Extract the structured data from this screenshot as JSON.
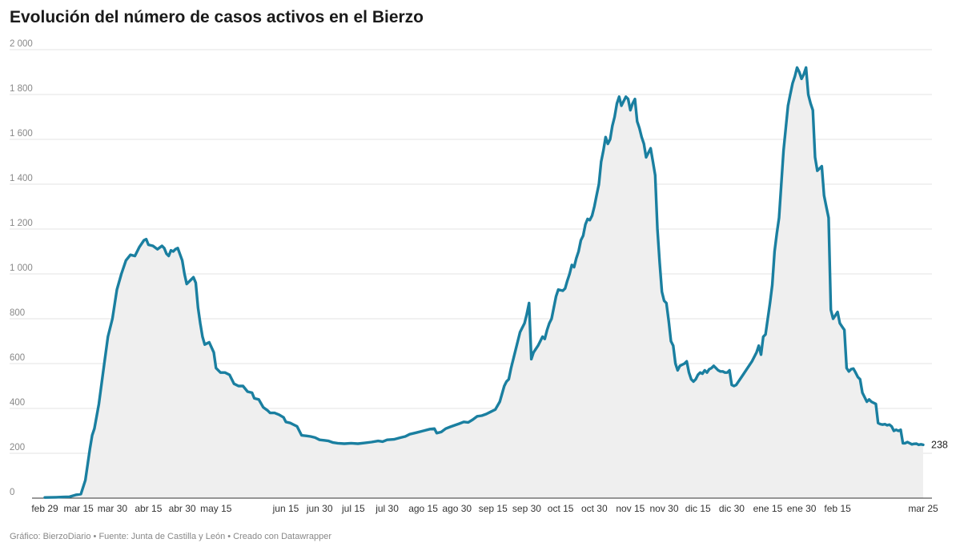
{
  "title": "Evolución del número de casos activos en el Bierzo",
  "footer": "Gráfico: BierzoDiario • Fuente: Junta de Castilla y León • Creado con Datawrapper",
  "colors": {
    "line": "#1a7fa0",
    "area": "#efefef",
    "grid": "#e3e3e3"
  },
  "chart_data": {
    "type": "area",
    "title": "Evolución del número de casos activos en el Bierzo",
    "xlabel": "",
    "ylabel": "",
    "ylim": [
      0,
      2000
    ],
    "y_ticks": [
      0,
      200,
      400,
      600,
      800,
      1000,
      1200,
      1400,
      1600,
      1800,
      2000
    ],
    "y_tick_labels": [
      "0",
      "200",
      "400",
      "600",
      "800",
      "1 000",
      "1 200",
      "1 400",
      "1 600",
      "1 800",
      "2 000"
    ],
    "x_range_days": [
      0,
      390
    ],
    "x_ticks": [
      {
        "day": 0,
        "label": "feb 29"
      },
      {
        "day": 15,
        "label": "mar 15"
      },
      {
        "day": 30,
        "label": "mar 30"
      },
      {
        "day": 46,
        "label": "abr 15"
      },
      {
        "day": 61,
        "label": "abr 30"
      },
      {
        "day": 76,
        "label": "may 15"
      },
      {
        "day": 107,
        "label": "jun 15"
      },
      {
        "day": 122,
        "label": "jun 30"
      },
      {
        "day": 137,
        "label": "jul 15"
      },
      {
        "day": 152,
        "label": "jul 30"
      },
      {
        "day": 168,
        "label": "ago 15"
      },
      {
        "day": 183,
        "label": "ago 30"
      },
      {
        "day": 199,
        "label": "sep 15"
      },
      {
        "day": 214,
        "label": "sep 30"
      },
      {
        "day": 229,
        "label": "oct 15"
      },
      {
        "day": 244,
        "label": "oct 30"
      },
      {
        "day": 260,
        "label": "nov 15"
      },
      {
        "day": 275,
        "label": "nov 30"
      },
      {
        "day": 290,
        "label": "dic 15"
      },
      {
        "day": 305,
        "label": "dic 30"
      },
      {
        "day": 321,
        "label": "ene 15"
      },
      {
        "day": 336,
        "label": "ene 30"
      },
      {
        "day": 352,
        "label": "feb 15"
      },
      {
        "day": 390,
        "label": "mar 25"
      }
    ],
    "end_label": "238",
    "series": [
      {
        "values": [
          [
            0,
            3
          ],
          [
            5,
            4
          ],
          [
            8,
            5
          ],
          [
            11,
            6
          ],
          [
            14,
            15
          ],
          [
            16,
            18
          ],
          [
            18,
            80
          ],
          [
            20,
            220
          ],
          [
            21,
            280
          ],
          [
            22,
            310
          ],
          [
            24,
            420
          ],
          [
            26,
            570
          ],
          [
            28,
            720
          ],
          [
            30,
            800
          ],
          [
            32,
            930
          ],
          [
            34,
            1000
          ],
          [
            36,
            1060
          ],
          [
            38,
            1085
          ],
          [
            40,
            1080
          ],
          [
            42,
            1120
          ],
          [
            44,
            1150
          ],
          [
            45,
            1155
          ],
          [
            46,
            1130
          ],
          [
            48,
            1125
          ],
          [
            50,
            1110
          ],
          [
            52,
            1125
          ],
          [
            53,
            1115
          ],
          [
            54,
            1090
          ],
          [
            55,
            1080
          ],
          [
            56,
            1105
          ],
          [
            57,
            1100
          ],
          [
            58,
            1110
          ],
          [
            59,
            1115
          ],
          [
            61,
            1060
          ],
          [
            62,
            1000
          ],
          [
            63,
            955
          ],
          [
            65,
            975
          ],
          [
            66,
            985
          ],
          [
            67,
            960
          ],
          [
            68,
            850
          ],
          [
            69,
            780
          ],
          [
            70,
            720
          ],
          [
            71,
            685
          ],
          [
            72,
            690
          ],
          [
            73,
            695
          ],
          [
            75,
            650
          ],
          [
            76,
            580
          ],
          [
            78,
            560
          ],
          [
            80,
            560
          ],
          [
            82,
            550
          ],
          [
            84,
            510
          ],
          [
            86,
            500
          ],
          [
            88,
            500
          ],
          [
            90,
            475
          ],
          [
            92,
            470
          ],
          [
            93,
            445
          ],
          [
            95,
            440
          ],
          [
            97,
            405
          ],
          [
            99,
            390
          ],
          [
            100,
            380
          ],
          [
            102,
            380
          ],
          [
            104,
            372
          ],
          [
            106,
            360
          ],
          [
            107,
            340
          ],
          [
            109,
            335
          ],
          [
            110,
            330
          ],
          [
            111,
            325
          ],
          [
            112,
            320
          ],
          [
            114,
            280
          ],
          [
            116,
            278
          ],
          [
            118,
            275
          ],
          [
            120,
            270
          ],
          [
            122,
            260
          ],
          [
            124,
            258
          ],
          [
            126,
            255
          ],
          [
            128,
            248
          ],
          [
            130,
            245
          ],
          [
            133,
            243
          ],
          [
            136,
            245
          ],
          [
            139,
            243
          ],
          [
            142,
            246
          ],
          [
            145,
            250
          ],
          [
            148,
            255
          ],
          [
            150,
            252
          ],
          [
            152,
            260
          ],
          [
            155,
            262
          ],
          [
            158,
            270
          ],
          [
            160,
            275
          ],
          [
            162,
            285
          ],
          [
            165,
            292
          ],
          [
            168,
            300
          ],
          [
            171,
            308
          ],
          [
            173,
            310
          ],
          [
            174,
            290
          ],
          [
            176,
            295
          ],
          [
            178,
            310
          ],
          [
            180,
            318
          ],
          [
            182,
            325
          ],
          [
            184,
            332
          ],
          [
            186,
            340
          ],
          [
            188,
            338
          ],
          [
            190,
            350
          ],
          [
            192,
            365
          ],
          [
            194,
            368
          ],
          [
            196,
            375
          ],
          [
            198,
            385
          ],
          [
            200,
            395
          ],
          [
            202,
            430
          ],
          [
            204,
            500
          ],
          [
            205,
            520
          ],
          [
            206,
            530
          ],
          [
            207,
            580
          ],
          [
            209,
            660
          ],
          [
            210,
            700
          ],
          [
            211,
            740
          ],
          [
            213,
            780
          ],
          [
            214,
            820
          ],
          [
            215,
            870
          ],
          [
            216,
            620
          ],
          [
            217,
            650
          ],
          [
            219,
            680
          ],
          [
            220,
            700
          ],
          [
            221,
            720
          ],
          [
            222,
            710
          ],
          [
            223,
            750
          ],
          [
            224,
            780
          ],
          [
            225,
            800
          ],
          [
            226,
            850
          ],
          [
            227,
            900
          ],
          [
            228,
            930
          ],
          [
            230,
            925
          ],
          [
            231,
            935
          ],
          [
            232,
            970
          ],
          [
            233,
            1000
          ],
          [
            234,
            1040
          ],
          [
            235,
            1030
          ],
          [
            236,
            1070
          ],
          [
            237,
            1100
          ],
          [
            238,
            1150
          ],
          [
            239,
            1170
          ],
          [
            240,
            1220
          ],
          [
            241,
            1245
          ],
          [
            242,
            1240
          ],
          [
            243,
            1260
          ],
          [
            244,
            1300
          ],
          [
            245,
            1350
          ],
          [
            246,
            1400
          ],
          [
            247,
            1500
          ],
          [
            248,
            1550
          ],
          [
            249,
            1610
          ],
          [
            250,
            1580
          ],
          [
            251,
            1600
          ],
          [
            252,
            1660
          ],
          [
            253,
            1700
          ],
          [
            254,
            1760
          ],
          [
            255,
            1790
          ],
          [
            256,
            1750
          ],
          [
            257,
            1770
          ],
          [
            258,
            1790
          ],
          [
            259,
            1780
          ],
          [
            260,
            1730
          ],
          [
            261,
            1760
          ],
          [
            262,
            1780
          ],
          [
            263,
            1680
          ],
          [
            264,
            1650
          ],
          [
            265,
            1610
          ],
          [
            266,
            1580
          ],
          [
            267,
            1520
          ],
          [
            268,
            1540
          ],
          [
            269,
            1560
          ],
          [
            270,
            1500
          ],
          [
            271,
            1440
          ],
          [
            272,
            1200
          ],
          [
            273,
            1050
          ],
          [
            274,
            920
          ],
          [
            275,
            880
          ],
          [
            276,
            870
          ],
          [
            277,
            790
          ],
          [
            278,
            700
          ],
          [
            279,
            680
          ],
          [
            280,
            600
          ],
          [
            281,
            570
          ],
          [
            282,
            590
          ],
          [
            283,
            595
          ],
          [
            284,
            600
          ],
          [
            285,
            610
          ],
          [
            286,
            560
          ],
          [
            287,
            530
          ],
          [
            288,
            520
          ],
          [
            289,
            530
          ],
          [
            290,
            550
          ],
          [
            291,
            560
          ],
          [
            292,
            555
          ],
          [
            293,
            570
          ],
          [
            294,
            560
          ],
          [
            295,
            575
          ],
          [
            296,
            580
          ],
          [
            297,
            590
          ],
          [
            298,
            580
          ],
          [
            299,
            570
          ],
          [
            300,
            565
          ],
          [
            301,
            565
          ],
          [
            302,
            560
          ],
          [
            303,
            560
          ],
          [
            304,
            570
          ],
          [
            305,
            505
          ],
          [
            306,
            500
          ],
          [
            307,
            505
          ],
          [
            308,
            520
          ],
          [
            310,
            550
          ],
          [
            312,
            580
          ],
          [
            314,
            610
          ],
          [
            316,
            650
          ],
          [
            317,
            680
          ],
          [
            318,
            640
          ],
          [
            319,
            720
          ],
          [
            320,
            730
          ],
          [
            321,
            800
          ],
          [
            322,
            870
          ],
          [
            323,
            950
          ],
          [
            324,
            1100
          ],
          [
            325,
            1180
          ],
          [
            326,
            1250
          ],
          [
            327,
            1400
          ],
          [
            328,
            1550
          ],
          [
            329,
            1650
          ],
          [
            330,
            1750
          ],
          [
            331,
            1800
          ],
          [
            332,
            1850
          ],
          [
            333,
            1880
          ],
          [
            334,
            1920
          ],
          [
            335,
            1900
          ],
          [
            336,
            1870
          ],
          [
            337,
            1890
          ],
          [
            338,
            1920
          ],
          [
            339,
            1800
          ],
          [
            340,
            1760
          ],
          [
            341,
            1730
          ],
          [
            342,
            1520
          ],
          [
            343,
            1460
          ],
          [
            344,
            1470
          ],
          [
            345,
            1480
          ],
          [
            346,
            1350
          ],
          [
            347,
            1300
          ],
          [
            348,
            1250
          ],
          [
            349,
            840
          ],
          [
            350,
            800
          ],
          [
            351,
            815
          ],
          [
            352,
            830
          ],
          [
            353,
            780
          ],
          [
            354,
            765
          ],
          [
            355,
            750
          ],
          [
            356,
            580
          ],
          [
            357,
            565
          ],
          [
            358,
            575
          ],
          [
            359,
            578
          ],
          [
            360,
            560
          ],
          [
            361,
            540
          ],
          [
            362,
            530
          ],
          [
            363,
            470
          ],
          [
            364,
            450
          ],
          [
            365,
            430
          ],
          [
            366,
            440
          ],
          [
            367,
            430
          ],
          [
            368,
            425
          ],
          [
            369,
            420
          ],
          [
            370,
            335
          ],
          [
            371,
            330
          ],
          [
            372,
            328
          ],
          [
            373,
            330
          ],
          [
            374,
            325
          ],
          [
            375,
            328
          ],
          [
            376,
            320
          ],
          [
            377,
            300
          ],
          [
            378,
            305
          ],
          [
            379,
            300
          ],
          [
            380,
            305
          ],
          [
            381,
            245
          ],
          [
            382,
            245
          ],
          [
            383,
            250
          ],
          [
            384,
            245
          ],
          [
            385,
            240
          ],
          [
            386,
            242
          ],
          [
            387,
            243
          ],
          [
            388,
            238
          ],
          [
            389,
            240
          ],
          [
            390,
            238
          ]
        ]
      }
    ]
  }
}
